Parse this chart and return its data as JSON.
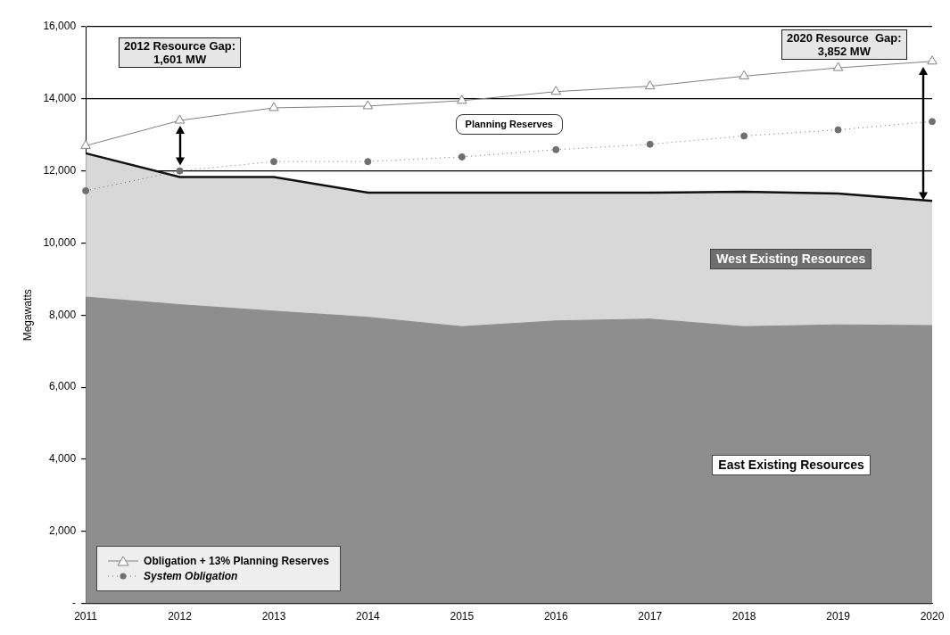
{
  "chart_data": {
    "type": "area",
    "ylabel": "Megawatts",
    "categories": [
      "2011",
      "2012",
      "2013",
      "2014",
      "2015",
      "2016",
      "2017",
      "2018",
      "2019",
      "2020"
    ],
    "stacked": true,
    "grid": "y",
    "legend": "bottom left",
    "ylim": [
      0,
      16000
    ],
    "yticks": [
      {
        "value": 0,
        "label": "-"
      },
      {
        "value": 2000,
        "label": "2,000"
      },
      {
        "value": 4000,
        "label": "4,000"
      },
      {
        "value": 6000,
        "label": "6,000"
      },
      {
        "value": 8000,
        "label": "8,000"
      },
      {
        "value": 10000,
        "label": "10,000"
      },
      {
        "value": 12000,
        "label": "12,000"
      },
      {
        "value": 14000,
        "label": "14,000"
      },
      {
        "value": 16000,
        "label": "16,000"
      }
    ],
    "series": [
      {
        "name": "East Existing Resources",
        "color": "#8e8e8e",
        "values": [
          8500,
          8290,
          8110,
          7940,
          7680,
          7840,
          7890,
          7680,
          7730,
          7710
        ]
      },
      {
        "name": "West Existing Resources",
        "color": "#d8d8d8",
        "values": [
          3990,
          3540,
          3720,
          3460,
          3720,
          3560,
          3510,
          3740,
          3640,
          3460
        ]
      },
      {
        "name": "Obligation + 13% Planning Reserves",
        "type": "line",
        "color": "#808080",
        "marker": "triangle",
        "values": [
          12700,
          13400,
          13750,
          13800,
          13950,
          14200,
          14350,
          14630,
          14860,
          15040
        ]
      },
      {
        "name": "System Obligation",
        "type": "line",
        "color": "#707070",
        "marker": "circle",
        "line_style": "dotted",
        "values": [
          11450,
          12000,
          12260,
          12260,
          12390,
          12590,
          12740,
          12970,
          13140,
          13370
        ]
      }
    ],
    "annotations": [
      "2012 Resource Gap:\n1,601 MW",
      "2020 Resource  Gap:\n3,852 MW",
      "Planning Reserves"
    ]
  }
}
